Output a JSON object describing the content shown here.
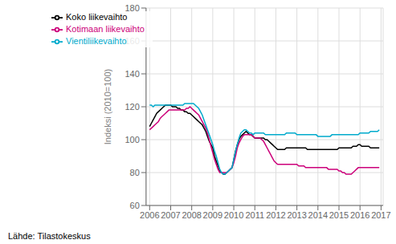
{
  "chart_data": {
    "type": "line",
    "ylabel": "Indeksi (2010=100)",
    "annotation": "Lähde: Tilastokeskus",
    "grid": true,
    "legend": "upper left",
    "xlim": [
      2005.83,
      2017.1
    ],
    "xticks": [
      2006,
      2007,
      2008,
      2009,
      2010,
      2011,
      2012,
      2013,
      2014,
      2015,
      2016,
      2017
    ],
    "ylim": [
      60,
      180
    ],
    "yticks": [
      60,
      80,
      100,
      120,
      140,
      160,
      180
    ],
    "x": [
      2006,
      2006.0833333333333,
      2006.1666666666667,
      2006.25,
      2006.3333333333333,
      2006.4166666666667,
      2006.5,
      2006.5833333333333,
      2006.6666666666667,
      2006.75,
      2006.8333333333333,
      2006.9166666666667,
      2007,
      2007.0833333333333,
      2007.1666666666667,
      2007.25,
      2007.3333333333333,
      2007.4166666666667,
      2007.5,
      2007.5833333333333,
      2007.6666666666667,
      2007.75,
      2007.8333333333333,
      2007.9166666666667,
      2008,
      2008.0833333333333,
      2008.1666666666667,
      2008.25,
      2008.3333333333333,
      2008.4166666666667,
      2008.5,
      2008.5833333333333,
      2008.6666666666667,
      2008.75,
      2008.8333333333333,
      2008.9166666666667,
      2009,
      2009.0833333333333,
      2009.1666666666667,
      2009.25,
      2009.3333333333333,
      2009.4166666666667,
      2009.5,
      2009.5833333333333,
      2009.6666666666667,
      2009.75,
      2009.8333333333333,
      2009.9166666666667,
      2010,
      2010.0833333333333,
      2010.1666666666667,
      2010.25,
      2010.3333333333333,
      2010.4166666666667,
      2010.5,
      2010.5833333333333,
      2010.6666666666667,
      2010.75,
      2010.8333333333333,
      2010.9166666666667,
      2011,
      2011.0833333333333,
      2011.1666666666667,
      2011.25,
      2011.3333333333333,
      2011.4166666666667,
      2011.5,
      2011.5833333333333,
      2011.6666666666667,
      2011.75,
      2011.8333333333333,
      2011.9166666666667,
      2012,
      2012.0833333333333,
      2012.1666666666667,
      2012.25,
      2012.3333333333333,
      2012.4166666666667,
      2012.5,
      2012.5833333333333,
      2012.6666666666667,
      2012.75,
      2012.8333333333333,
      2012.9166666666667,
      2013,
      2013.0833333333333,
      2013.1666666666667,
      2013.25,
      2013.3333333333333,
      2013.4166666666667,
      2013.5,
      2013.5833333333333,
      2013.6666666666667,
      2013.75,
      2013.8333333333333,
      2013.9166666666667,
      2014,
      2014.0833333333333,
      2014.1666666666667,
      2014.25,
      2014.3333333333333,
      2014.4166666666667,
      2014.5,
      2014.5833333333333,
      2014.6666666666667,
      2014.75,
      2014.8333333333333,
      2014.9166666666667,
      2015,
      2015.0833333333333,
      2015.1666666666667,
      2015.25,
      2015.3333333333333,
      2015.4166666666667,
      2015.5,
      2015.5833333333333,
      2015.6666666666667,
      2015.75,
      2015.8333333333333,
      2015.9166666666667,
      2016,
      2016.0833333333333,
      2016.1666666666667,
      2016.25,
      2016.3333333333333,
      2016.4166666666667,
      2016.5,
      2016.5833333333333,
      2016.6666666666667,
      2016.75,
      2016.8333333333333,
      2016.9166666666667
    ],
    "series": [
      {
        "name": "Koko liikevaihto",
        "color": "#000000",
        "values": [
          108,
          110,
          112,
          114,
          116,
          117,
          118,
          119,
          120,
          121,
          121,
          121,
          121,
          120,
          120,
          120,
          119,
          119,
          118,
          118,
          117,
          117,
          116,
          116,
          115,
          114,
          113,
          112,
          111,
          110,
          109,
          107,
          105,
          102,
          99,
          97,
          95,
          90,
          87,
          84,
          81,
          80,
          79,
          79,
          80,
          81,
          82,
          83,
          88,
          93,
          97,
          100,
          102,
          103,
          104,
          105,
          104,
          103,
          103,
          102,
          101,
          101,
          101,
          101,
          101,
          101,
          100,
          100,
          99,
          98,
          97,
          96,
          95,
          94,
          94,
          94,
          94,
          94,
          95,
          95,
          95,
          95,
          95,
          95,
          95,
          95,
          95,
          95,
          95,
          95,
          94,
          94,
          94,
          94,
          94,
          94,
          94,
          94,
          94,
          94,
          94,
          94,
          94,
          94,
          94,
          94,
          94,
          94,
          95,
          95,
          95,
          95,
          95,
          95,
          95,
          95,
          96,
          96,
          96,
          97,
          97,
          96,
          96,
          96,
          96,
          96,
          95,
          95,
          95,
          95,
          95,
          95
        ]
      },
      {
        "name": "Kotimaan liikevaihto",
        "color": "#cc007a",
        "values": [
          106,
          107,
          108,
          109,
          110,
          111,
          113,
          114,
          115,
          116,
          117,
          118,
          118,
          118,
          118,
          118,
          118,
          118,
          118,
          118,
          118,
          119,
          119,
          120,
          119,
          118,
          117,
          116,
          115,
          113,
          111,
          109,
          107,
          104,
          100,
          96,
          92,
          88,
          85,
          82,
          80,
          80,
          80,
          80,
          80,
          81,
          82,
          83,
          86,
          90,
          95,
          98,
          100,
          102,
          103,
          103,
          103,
          103,
          103,
          102,
          101,
          101,
          101,
          101,
          100,
          99,
          97,
          95,
          93,
          91,
          89,
          87,
          86,
          85,
          85,
          85,
          85,
          85,
          85,
          85,
          85,
          85,
          85,
          85,
          85,
          84,
          84,
          84,
          84,
          83,
          83,
          83,
          83,
          83,
          83,
          83,
          83,
          83,
          83,
          83,
          83,
          83,
          82,
          82,
          82,
          82,
          82,
          82,
          81,
          81,
          80,
          80,
          79,
          79,
          79,
          79,
          80,
          81,
          82,
          83,
          83,
          83,
          83,
          83,
          83,
          83,
          83,
          83,
          83,
          83,
          83,
          83
        ]
      },
      {
        "name": "Vientiliikevaihto",
        "color": "#00aacc",
        "values": [
          121,
          121,
          120,
          121,
          121,
          121,
          121,
          121,
          121,
          121,
          121,
          121,
          121,
          121,
          121,
          121,
          121,
          121,
          121,
          121,
          122,
          122,
          122,
          122,
          122,
          122,
          121,
          120,
          119,
          117,
          115,
          112,
          109,
          106,
          103,
          100,
          97,
          93,
          90,
          86,
          82,
          80,
          79,
          79,
          80,
          81,
          82,
          83,
          88,
          93,
          97,
          101,
          104,
          105,
          106,
          106,
          105,
          104,
          104,
          103,
          104,
          104,
          104,
          104,
          104,
          104,
          103,
          103,
          103,
          103,
          103,
          103,
          103,
          103,
          103,
          103,
          103,
          103,
          104,
          104,
          104,
          104,
          104,
          104,
          103,
          103,
          103,
          103,
          103,
          103,
          103,
          103,
          103,
          103,
          103,
          103,
          102,
          102,
          102,
          102,
          102,
          102,
          102,
          102,
          103,
          103,
          103,
          103,
          103,
          103,
          103,
          103,
          103,
          103,
          103,
          103,
          103,
          103,
          103,
          103,
          104,
          104,
          104,
          104,
          104,
          104,
          105,
          105,
          105,
          105,
          105,
          106
        ]
      }
    ]
  }
}
